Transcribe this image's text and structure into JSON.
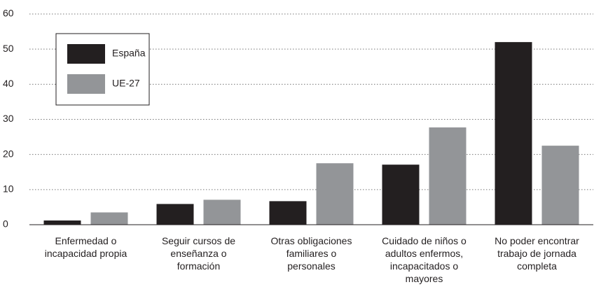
{
  "chart_data": {
    "type": "bar",
    "categories": [
      "Enfermedad o incapacidad propia",
      "Seguir cursos de enseñanza o formación",
      "Otras obligaciones familiares o personales",
      "Cuidado de niños o adultos enfermos, incapacitados o mayores",
      "No poder encontrar trabajo de jornada completa"
    ],
    "series": [
      {
        "name": "España",
        "color": "#231f20",
        "values": [
          1.2,
          5.9,
          6.7,
          17.1,
          52
        ]
      },
      {
        "name": "UE-27",
        "color": "#939598",
        "values": [
          3.5,
          7.1,
          17.5,
          27.7,
          22.5
        ]
      }
    ],
    "ylim": [
      0,
      60
    ],
    "yticks": [
      0,
      10,
      20,
      30,
      40,
      50,
      60
    ],
    "grid": true,
    "legend": "upper left"
  }
}
